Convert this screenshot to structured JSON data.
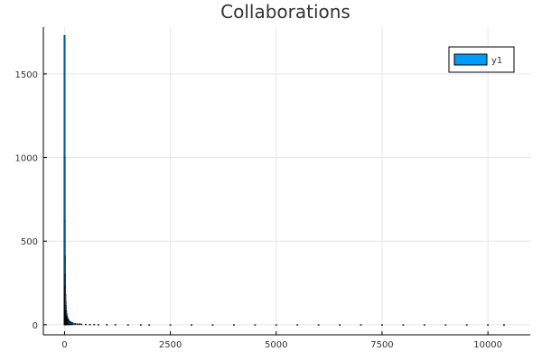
{
  "chart_data": {
    "type": "bar",
    "title": "Collaborations",
    "xlabel": "",
    "ylabel": "",
    "xlim": [
      -500,
      11000
    ],
    "ylim": [
      -60,
      1780
    ],
    "xticks": [
      0,
      2500,
      5000,
      7500,
      10000
    ],
    "xtick_labels": [
      "0",
      "2500",
      "5000",
      "7500",
      "10000"
    ],
    "yticks": [
      0,
      500,
      1000,
      1500
    ],
    "ytick_labels": [
      "0",
      "500",
      "1000",
      "1500"
    ],
    "grid": true,
    "legend_position": "top-right",
    "series": [
      {
        "name": "y1",
        "color": "#009af9",
        "x": [
          1,
          3,
          5,
          8,
          12,
          16,
          20,
          25,
          30,
          40,
          50,
          60,
          70,
          80,
          90,
          100,
          120,
          140,
          160,
          180,
          200,
          250,
          300,
          350,
          400,
          500,
          600,
          700,
          800,
          1000,
          1200,
          1500,
          1800,
          2000,
          2500,
          3000,
          3500,
          4000,
          4500,
          5000,
          5500,
          6000,
          6500,
          7000,
          7500,
          8000,
          8500,
          9000,
          9500,
          10000,
          10380
        ],
        "values": [
          1730,
          1000,
          620,
          410,
          300,
          230,
          180,
          140,
          115,
          85,
          65,
          52,
          42,
          35,
          30,
          26,
          21,
          18,
          15,
          13,
          11,
          9,
          7,
          6,
          5,
          4,
          3,
          3,
          2,
          2,
          2,
          1,
          1,
          1,
          1,
          1,
          1,
          1,
          1,
          1,
          1,
          1,
          1,
          1,
          1,
          1,
          1,
          1,
          1,
          1,
          1
        ]
      }
    ]
  }
}
